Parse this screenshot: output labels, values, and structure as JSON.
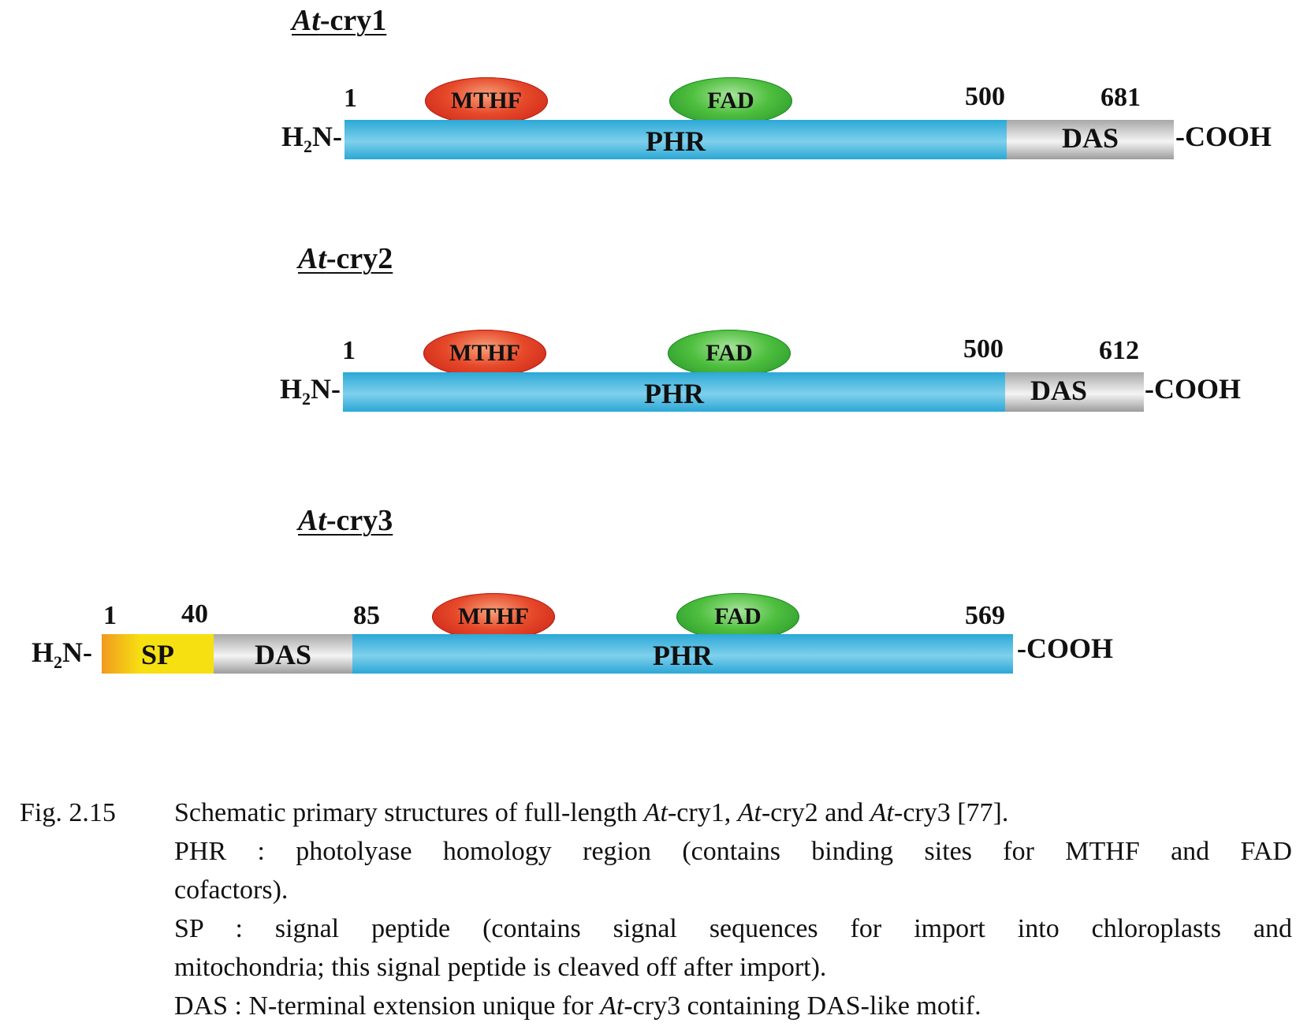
{
  "diagrams": {
    "cry1": {
      "title_italic": "At",
      "title_rest": "-cry1",
      "n_term": "H",
      "n_sub": "2",
      "n_rest": "N-",
      "c_term": "-COOH",
      "phr": "PHR",
      "das": "DAS",
      "mthf": "MTHF",
      "fad": "FAD",
      "pos_start": "1",
      "pos_mid": "500",
      "pos_end": "681"
    },
    "cry2": {
      "title_italic": "At",
      "title_rest": "-cry2",
      "n_term": "H",
      "n_sub": "2",
      "n_rest": "N-",
      "c_term": "-COOH",
      "phr": "PHR",
      "das": "DAS",
      "mthf": "MTHF",
      "fad": "FAD",
      "pos_start": "1",
      "pos_mid": "500",
      "pos_end": "612"
    },
    "cry3": {
      "title_italic": "At",
      "title_rest": "-cry3",
      "n_term": "H",
      "n_sub": "2",
      "n_rest": "N-",
      "c_term": "-COOH",
      "sp": "SP",
      "das": "DAS",
      "phr": "PHR",
      "mthf": "MTHF",
      "fad": "FAD",
      "pos_1": "1",
      "pos_40": "40",
      "pos_85": "85",
      "pos_569": "569"
    }
  },
  "caption": {
    "label": "Fig. 2.15",
    "line1_a": "Schematic primary structures of full-length ",
    "at": "At",
    "line1_b": "-cry1, ",
    "line1_c": "-cry2 and ",
    "line1_d": "-cry3 [77].",
    "phr_text": "PHR : photolyase homology region (contains binding sites for MTHF and FAD",
    "phr_text2": "cofactors).",
    "sp_text": "SP : signal peptide (contains signal sequences for import into chloroplasts and",
    "sp_text2": "mitochondria; this signal peptide is cleaved off after import).",
    "das_text_a": "DAS : N-terminal extension unique for ",
    "das_text_b": "-cry3 containing DAS-like motif."
  },
  "colors": {
    "phr": "#2ba8d6",
    "das": "#c8c8c8",
    "sp": "#f6e012",
    "mthf": "#e6492a",
    "fad": "#4fbf3f"
  }
}
